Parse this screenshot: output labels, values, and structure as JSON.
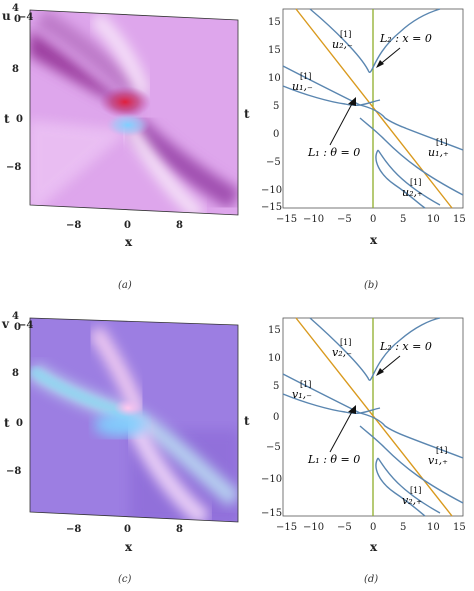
{
  "panels": {
    "a": {
      "caption": "(a)",
      "zlabel": "u",
      "ztick_top": "4",
      "ztick_mid": "0",
      "ztick_low": "−4",
      "xlabel": "x",
      "ylabel": "t",
      "xticks": [
        "−8",
        "0",
        "8"
      ],
      "yticks": [
        "8",
        "0",
        "−8"
      ]
    },
    "b": {
      "caption": "(b)",
      "xlabel": "x",
      "ylabel": "t",
      "xticks": [
        "−15",
        "−10",
        "−5",
        "0",
        "5",
        "10",
        "15"
      ],
      "yticks": [
        "15",
        "10",
        "5",
        "0",
        "−5",
        "−10",
        "−15"
      ],
      "labels": {
        "L2": "L₂ : x = 0",
        "L1": "L₁ : θ = 0",
        "u2m": "u₂,₋",
        "u1m": "u₁,₋",
        "u1p": "u₁,₊",
        "u2p": "u₂,₊",
        "sup": "[1]"
      }
    },
    "c": {
      "caption": "(c)",
      "zlabel": "v",
      "ztick_top": "4",
      "ztick_mid": "0",
      "ztick_low": "−4",
      "xlabel": "x",
      "ylabel": "t",
      "xticks": [
        "−8",
        "0",
        "8"
      ],
      "yticks": [
        "8",
        "0",
        "−8"
      ]
    },
    "d": {
      "caption": "(d)",
      "xlabel": "x",
      "ylabel": "t",
      "xticks": [
        "−15",
        "−10",
        "−5",
        "0",
        "5",
        "10",
        "15"
      ],
      "yticks": [
        "15",
        "10",
        "5",
        "0",
        "−5",
        "−10",
        "−15"
      ],
      "labels": {
        "L2": "L₂ : x = 0",
        "L1": "L₁ : θ = 0",
        "v2m": "v₂,₋",
        "v1m": "v₁,₋",
        "v1p": "v₁,₊",
        "v2p": "v₂,₊",
        "sup": "[1]"
      }
    }
  },
  "colors": {
    "curve": "#5a86b0",
    "line_L1": "#d99a1e",
    "line_L2": "#8fae2a",
    "surface_u_base": "#d9a0e6",
    "surface_v_base": "#9a7ae0"
  }
}
